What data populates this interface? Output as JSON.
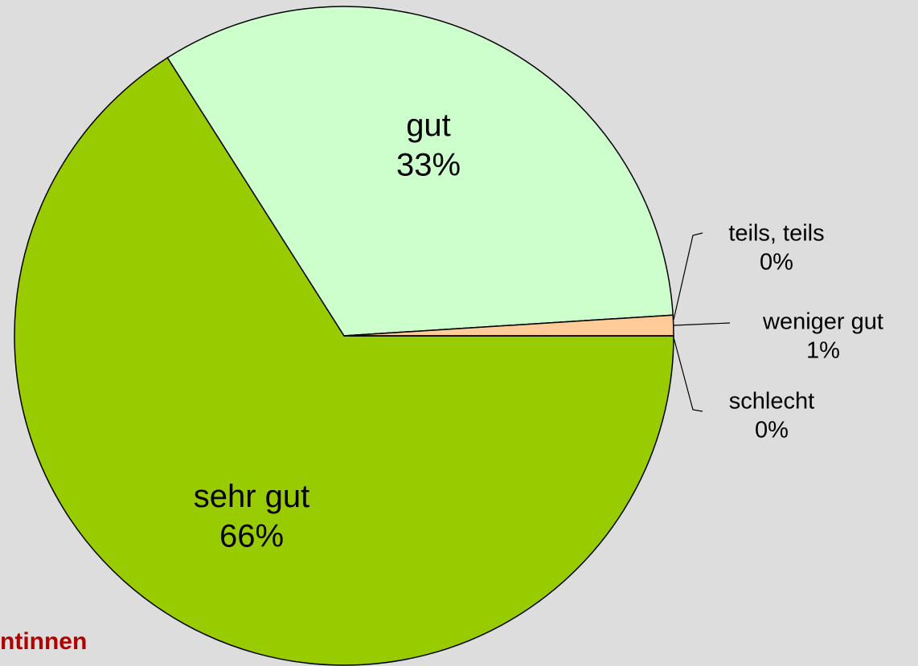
{
  "chart_data": {
    "type": "pie",
    "categories": [
      "sehr gut",
      "gut",
      "teils, teils",
      "weniger gut",
      "schlecht"
    ],
    "values": [
      66,
      33,
      0,
      1,
      0
    ],
    "value_labels": [
      "66%",
      "33%",
      "0%",
      "1%",
      "0%"
    ],
    "colors": [
      "#99cc00",
      "#ccffcc",
      "#ffff99",
      "#ffcc99",
      "#ff9900"
    ],
    "footer_text": "ntinnen"
  }
}
